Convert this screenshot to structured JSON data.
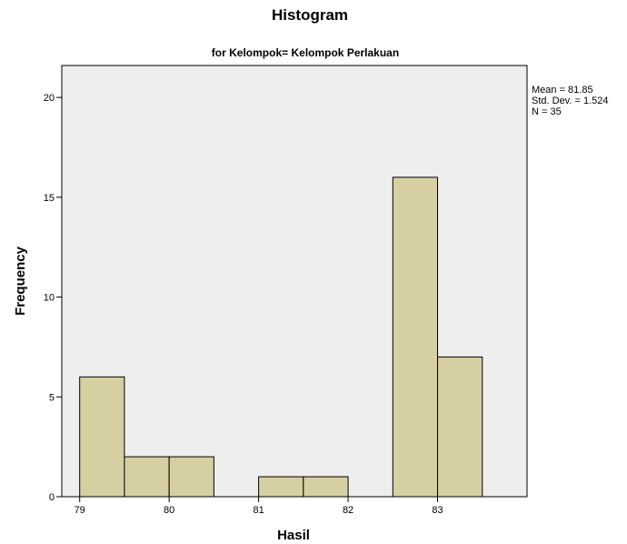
{
  "chart_data": {
    "type": "bar",
    "title": "Histogram",
    "subtitle": "for Kelompok= Kelompok Perlakuan",
    "xlabel": "Hasil",
    "ylabel": "Frequency",
    "bin_width": 0.5,
    "bins": [
      {
        "start": 79.0,
        "end": 79.5,
        "value": 6
      },
      {
        "start": 79.5,
        "end": 80.0,
        "value": 2
      },
      {
        "start": 80.0,
        "end": 80.5,
        "value": 2
      },
      {
        "start": 81.0,
        "end": 81.5,
        "value": 1
      },
      {
        "start": 81.5,
        "end": 82.0,
        "value": 1
      },
      {
        "start": 82.5,
        "end": 83.0,
        "value": 16
      },
      {
        "start": 83.0,
        "end": 83.5,
        "value": 7
      }
    ],
    "xticks": [
      "79",
      "80",
      "81",
      "82",
      "83"
    ],
    "yticks": [
      "0",
      "5",
      "10",
      "15",
      "20"
    ],
    "xlim": [
      78.8,
      84.0
    ],
    "ylim": [
      0,
      21.6
    ],
    "stats": {
      "mean": "Mean = 81.85",
      "std": "Std. Dev. = 1.524",
      "n": "N = 35"
    },
    "colors": {
      "plot_background": "#eeeeee",
      "bar_fill": "#d6cfa2",
      "bar_stroke": "#000000"
    }
  }
}
